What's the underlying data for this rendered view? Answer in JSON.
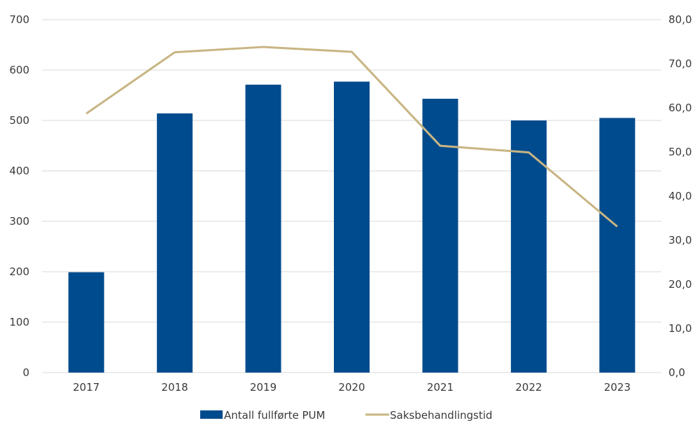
{
  "chart_data": {
    "type": "bar",
    "categories": [
      "2017",
      "2018",
      "2019",
      "2020",
      "2021",
      "2022",
      "2023"
    ],
    "series": [
      {
        "name": "Antall fullførte PUM",
        "type": "bar",
        "axis": "left",
        "color": "#004B8D",
        "values": [
          199,
          514,
          571,
          577,
          543,
          500,
          505
        ]
      },
      {
        "name": "Saksbehandlingstid",
        "type": "line",
        "axis": "right",
        "color": "#C8B583",
        "values": [
          58.7,
          72.6,
          73.8,
          72.7,
          51.4,
          49.9,
          33.1
        ]
      }
    ],
    "y_left": {
      "min": 0,
      "max": 700,
      "ticks": [
        "0",
        "100",
        "200",
        "300",
        "400",
        "500",
        "600",
        "700"
      ]
    },
    "y_right": {
      "min": 0,
      "max": 80,
      "ticks": [
        "0,0",
        "10,0",
        "20,0",
        "30,0",
        "40,0",
        "50,0",
        "60,0",
        "70,0",
        "80,0"
      ]
    },
    "grid": true,
    "legend_position": "bottom",
    "title": "",
    "xlabel": "",
    "ylabel": ""
  }
}
